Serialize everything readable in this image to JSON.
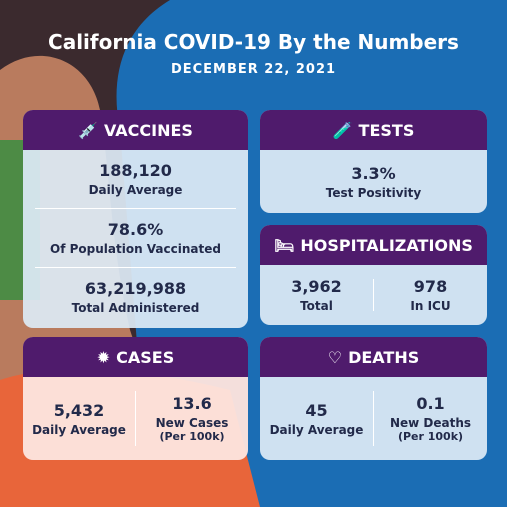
{
  "header": {
    "title": "California COVID-19 By the Numbers",
    "date": "DECEMBER 22, 2021"
  },
  "vaccines": {
    "title": "VACCINES",
    "stats": [
      {
        "value": "188,120",
        "label": "Daily Average"
      },
      {
        "value": "78.6%",
        "label": "Of Population Vaccinated"
      },
      {
        "value": "63,219,988",
        "label": "Total Administered"
      }
    ]
  },
  "tests": {
    "title": "TESTS",
    "stats": [
      {
        "value": "3.3%",
        "label": "Test Positivity"
      }
    ]
  },
  "hospitalizations": {
    "title": "HOSPITALIZATIONS",
    "stats": [
      {
        "value": "3,962",
        "label": "Total"
      },
      {
        "value": "978",
        "label": "In ICU"
      }
    ]
  },
  "cases": {
    "title": "CASES",
    "stats": [
      {
        "value": "5,432",
        "label": "Daily Average"
      },
      {
        "value": "13.6",
        "label": "New Cases",
        "sublabel": "(Per 100k)"
      }
    ]
  },
  "deaths": {
    "title": "DEATHS",
    "stats": [
      {
        "value": "45",
        "label": "Daily Average"
      },
      {
        "value": "0.1",
        "label": "New Deaths",
        "sublabel": "(Per 100k)"
      }
    ]
  }
}
